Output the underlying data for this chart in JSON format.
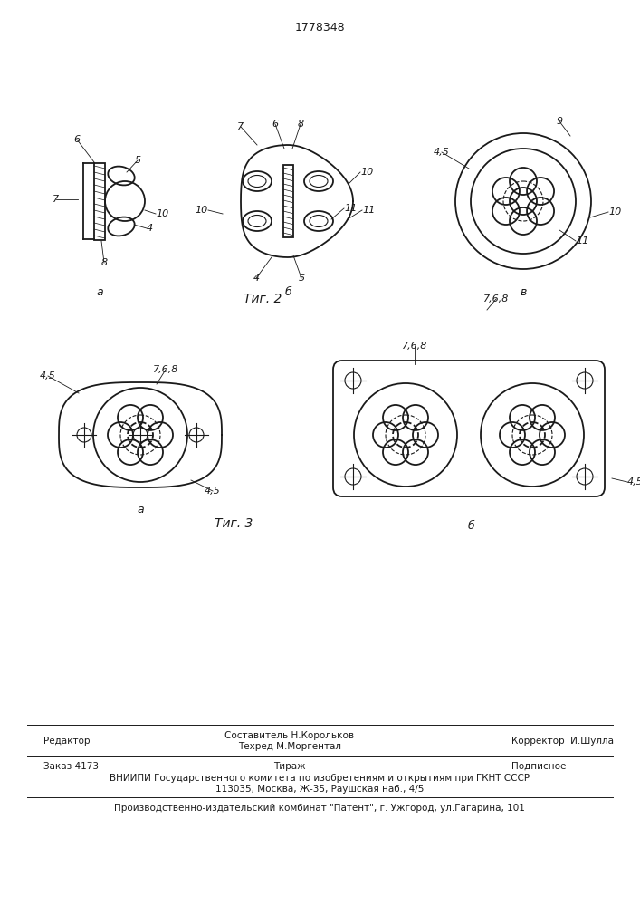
{
  "patent_number": "1778348",
  "fig2_label": "Τиг. 2",
  "fig3_label": "Τиг. 3",
  "bg_color": "#ffffff",
  "line_color": "#1a1a1a",
  "footer_editor": "Редактор",
  "footer_author": "Составитель Н.Корольков",
  "footer_techred": "Техред М.Моргентал",
  "footer_corrector": "Корректор  И.Шулла",
  "footer_order": "Заказ 4173",
  "footer_tirazh": "Тираж",
  "footer_podpis": "Подписное",
  "footer_vniip1": "ВНИИПИ Государственного комитета по изобретениям и открытиям при ГКНТ СССР",
  "footer_vniip2": "113035, Москва, Ж-35, Раушская наб., 4/5",
  "footer_patent": "Производственно-издательский комбинат \"Патент\", г. Ужгород, ул.Гагарина, 101"
}
